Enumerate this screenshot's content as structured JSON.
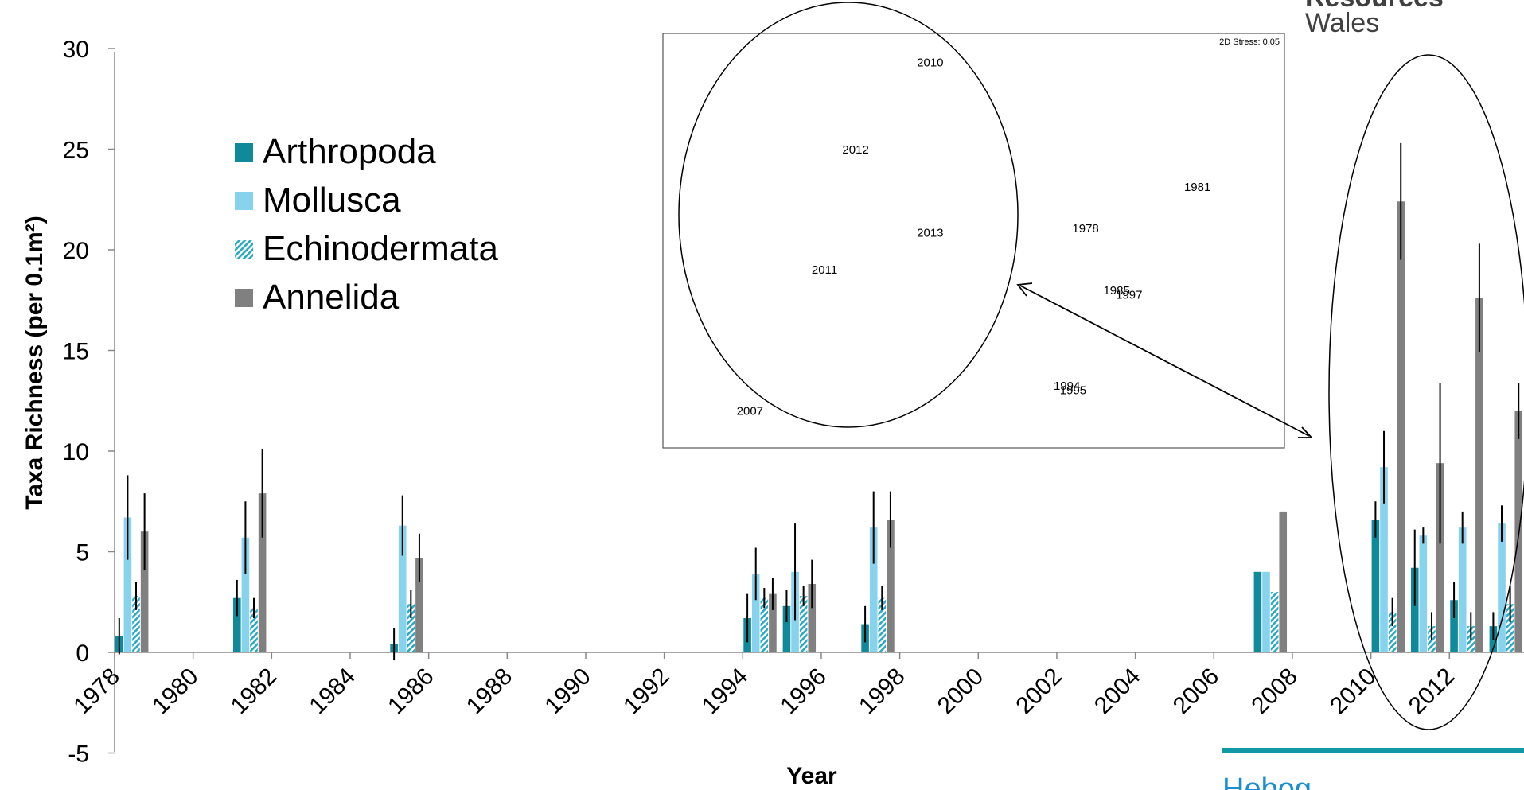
{
  "chart_data": {
    "type": "bar",
    "xlabel": "Year",
    "ylabel": "Taxa Richness (per 0.1m²)",
    "ylim": [
      -5,
      30
    ],
    "yticks": [
      "-5",
      "0",
      "5",
      "10",
      "15",
      "20",
      "25",
      "30"
    ],
    "xticks": [
      "1978",
      "1980",
      "1982",
      "1984",
      "1986",
      "1988",
      "1990",
      "1992",
      "1994",
      "1996",
      "1998",
      "2000",
      "2002",
      "2004",
      "2006",
      "2008",
      "2010",
      "2012"
    ],
    "xrange": [
      1978,
      2013.9
    ],
    "legend_position": "upper-left",
    "series": [
      {
        "name": "Arthropoda",
        "color": "#108a9a",
        "pattern": "solid"
      },
      {
        "name": "Mollusca",
        "color": "#87d2ec",
        "pattern": "solid"
      },
      {
        "name": "Echinodermata",
        "color": "#2ba8c2",
        "pattern": "hatch"
      },
      {
        "name": "Annelida",
        "color": "#808080",
        "pattern": "solid"
      }
    ],
    "data": [
      {
        "year": 1978,
        "values": [
          0.8,
          6.7,
          2.8,
          6.0
        ],
        "errors": [
          0.9,
          2.1,
          0.7,
          1.9
        ]
      },
      {
        "year": 1981,
        "values": [
          2.7,
          5.7,
          2.2,
          7.9
        ],
        "errors": [
          0.9,
          1.8,
          0.5,
          2.2
        ]
      },
      {
        "year": 1985,
        "values": [
          0.4,
          6.3,
          2.4,
          4.7
        ],
        "errors": [
          0.8,
          1.5,
          0.7,
          1.2
        ]
      },
      {
        "year": 1994,
        "values": [
          1.7,
          3.9,
          2.7,
          2.9
        ],
        "errors": [
          1.2,
          1.3,
          0.5,
          0.8
        ]
      },
      {
        "year": 1995,
        "values": [
          2.3,
          4.0,
          2.8,
          3.4
        ],
        "errors": [
          0.8,
          2.4,
          0.5,
          1.2
        ]
      },
      {
        "year": 1997,
        "values": [
          1.4,
          6.2,
          2.7,
          6.6
        ],
        "errors": [
          0.9,
          1.8,
          0.6,
          1.4
        ]
      },
      {
        "year": 2007,
        "values": [
          4.0,
          4.0,
          3.0,
          7.0
        ],
        "errors": [
          0,
          0,
          0,
          0
        ]
      },
      {
        "year": 2010,
        "values": [
          6.6,
          9.2,
          2.0,
          22.4
        ],
        "errors": [
          0.9,
          1.8,
          0.7,
          2.9
        ]
      },
      {
        "year": 2011,
        "values": [
          4.2,
          5.8,
          1.3,
          9.4
        ],
        "errors": [
          1.9,
          0.4,
          0.7,
          4.0
        ]
      },
      {
        "year": 2012,
        "values": [
          2.6,
          6.2,
          1.3,
          17.6
        ],
        "errors": [
          0.9,
          0.8,
          0.7,
          2.7
        ]
      },
      {
        "year": 2013,
        "values": [
          1.3,
          6.4,
          2.4,
          12.0
        ],
        "errors": [
          0.7,
          0.9,
          0.9,
          1.4
        ]
      }
    ],
    "inset": {
      "type": "scatter",
      "stress_label": "2D Stress: 0.05",
      "xlim": [
        0,
        10
      ],
      "ylim": [
        0,
        10
      ],
      "points": [
        {
          "label": "2010",
          "x": 4.3,
          "y": 9.2
        },
        {
          "label": "2012",
          "x": 3.1,
          "y": 7.1
        },
        {
          "label": "2013",
          "x": 4.3,
          "y": 5.1
        },
        {
          "label": "2011",
          "x": 2.6,
          "y": 4.2
        },
        {
          "label": "2007",
          "x": 1.4,
          "y": 0.8
        },
        {
          "label": "1981",
          "x": 8.6,
          "y": 6.2
        },
        {
          "label": "1978",
          "x": 6.8,
          "y": 5.2
        },
        {
          "label": "1985",
          "x": 7.3,
          "y": 3.7
        },
        {
          "label": "1997",
          "x": 7.5,
          "y": 3.6
        },
        {
          "label": "1994",
          "x": 6.5,
          "y": 1.4
        },
        {
          "label": "1995",
          "x": 6.6,
          "y": 1.3
        }
      ]
    }
  },
  "branding": {
    "resources": "Resources",
    "wales": "Wales",
    "hebog": "Hebog",
    "accent": "#1398a5"
  }
}
